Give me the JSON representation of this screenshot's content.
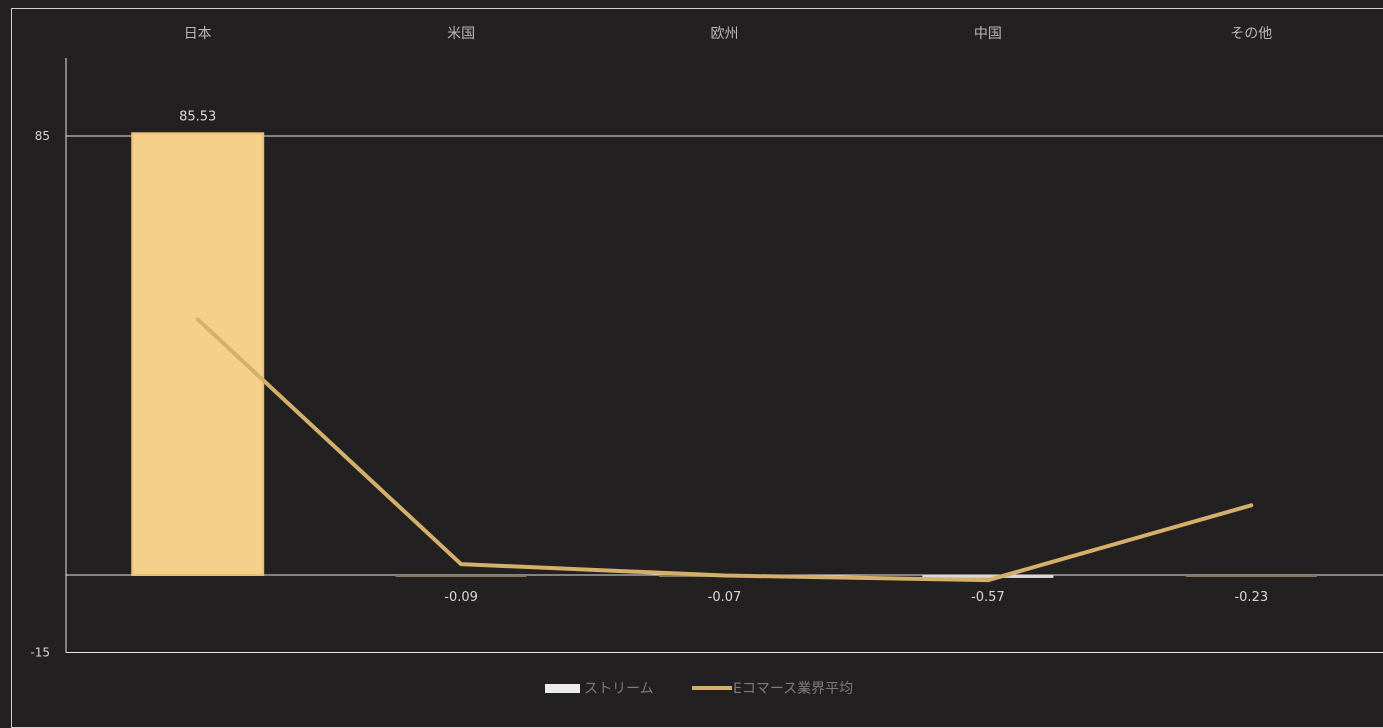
{
  "chart_data": {
    "type": "bar",
    "categories": [
      "日本",
      "米国",
      "欧州",
      "中国",
      "その他"
    ],
    "series": [
      {
        "name": "ストリーム",
        "type": "bar",
        "values": [
          85.53,
          -0.09,
          -0.07,
          -0.57,
          -0.23
        ],
        "color": "#f5d08a",
        "data_labels": [
          "85.53",
          "-0.09",
          "-0.07",
          "-0.57",
          "-0.23"
        ]
      },
      {
        "name": "Eコマース業界平均",
        "type": "line",
        "values": [
          49.5,
          2.1,
          -0.1,
          -1.0,
          13.5
        ],
        "color": "#d4b06a"
      }
    ],
    "ylim": [
      -15,
      100
    ],
    "yticks": [
      85,
      -15
    ],
    "gridlines_at": [
      85,
      0,
      -15
    ],
    "x_axis_position": "top",
    "legend_position": "bottom-center"
  }
}
